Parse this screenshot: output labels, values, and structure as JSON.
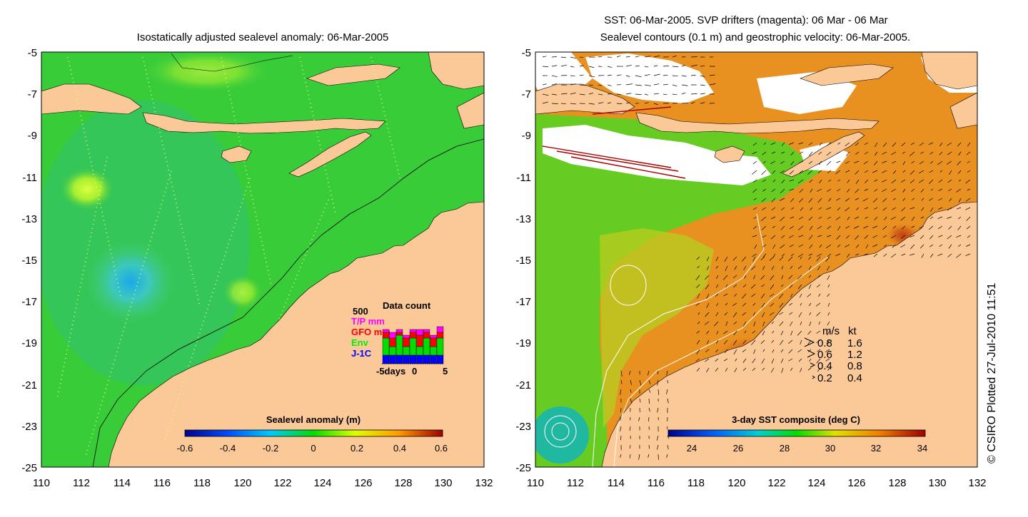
{
  "left_panel": {
    "title": "Isostatically adjusted sealevel anomaly: 06-Mar-2005",
    "y_ticks": [
      "-5",
      "-7",
      "-9",
      "-11",
      "-13",
      "-15",
      "-17",
      "-19",
      "-21",
      "-23",
      "-25"
    ],
    "x_ticks": [
      "110",
      "112",
      "114",
      "116",
      "118",
      "120",
      "122",
      "124",
      "126",
      "128",
      "130",
      "132"
    ],
    "colorbar": {
      "label": "Sealevel anomaly (m)",
      "ticks": [
        "-0.6",
        "-0.4",
        "-0.2",
        "0",
        "0.2",
        "0.4",
        "0.6"
      ]
    },
    "data_count": {
      "title": "Data count",
      "max_label": "500",
      "legend": [
        {
          "label": "T/P mm",
          "color": "#ff00ff"
        },
        {
          "label": "GFO mm",
          "color": "#ff0000"
        },
        {
          "label": "Env",
          "color": "#00dd00"
        },
        {
          "label": "J-1C",
          "color": "#0000ff"
        }
      ],
      "x_ticks": [
        "-5days",
        "0",
        "5"
      ],
      "bars": [
        {
          "j1c": 0.3,
          "env": 0.6,
          "gfo": 0.2,
          "tp": 0.1
        },
        {
          "j1c": 0.3,
          "env": 0.3,
          "gfo": 0.3,
          "tp": 0.2
        },
        {
          "j1c": 0.3,
          "env": 0.7,
          "gfo": 0.1,
          "tp": 0.1
        },
        {
          "j1c": 0.3,
          "env": 0.3,
          "gfo": 0.3,
          "tp": 0.1
        },
        {
          "j1c": 0.3,
          "env": 0.6,
          "gfo": 0.2,
          "tp": 0.1
        },
        {
          "j1c": 0.3,
          "env": 0.3,
          "gfo": 0.4,
          "tp": 0.2
        },
        {
          "j1c": 0.3,
          "env": 0.6,
          "gfo": 0.2,
          "tp": 0.1
        },
        {
          "j1c": 0.3,
          "env": 0.3,
          "gfo": 0.3,
          "tp": 0.1
        },
        {
          "j1c": 0.3,
          "env": 0.6,
          "gfo": 0.2,
          "tp": 0.2
        }
      ]
    }
  },
  "right_panel": {
    "title_line1": "SST: 06-Mar-2005. SVP drifters (magenta): 06 Mar - 06 Mar",
    "title_line2": "Sealevel contours (0.1 m) and geostrophic velocity: 06-Mar-2005.",
    "y_ticks": [
      "-5",
      "-7",
      "-9",
      "-11",
      "-13",
      "-15",
      "-17",
      "-19",
      "-21",
      "-23",
      "-25"
    ],
    "x_ticks": [
      "110",
      "112",
      "114",
      "116",
      "118",
      "120",
      "122",
      "124",
      "126",
      "128",
      "130",
      "132"
    ],
    "colorbar": {
      "label": "3-day SST composite (deg C)",
      "ticks": [
        "24",
        "26",
        "28",
        "30",
        "32",
        "34"
      ]
    },
    "velocity_legend": {
      "header_ms": "m/s",
      "header_kt": "kt",
      "rows": [
        {
          "ms": "0.8",
          "kt": "1.6"
        },
        {
          "ms": "0.6",
          "kt": "1.2"
        },
        {
          "ms": "0.4",
          "kt": "0.8"
        },
        {
          "ms": "0.2",
          "kt": "0.4"
        }
      ]
    }
  },
  "credit": "© CSIRO Plotted 27-Jul-2010 11:51",
  "colors": {
    "land": "#fbc898",
    "sea_green": "#33cc33",
    "sst_orange": "#e89020",
    "cloud": "#ffffff"
  }
}
